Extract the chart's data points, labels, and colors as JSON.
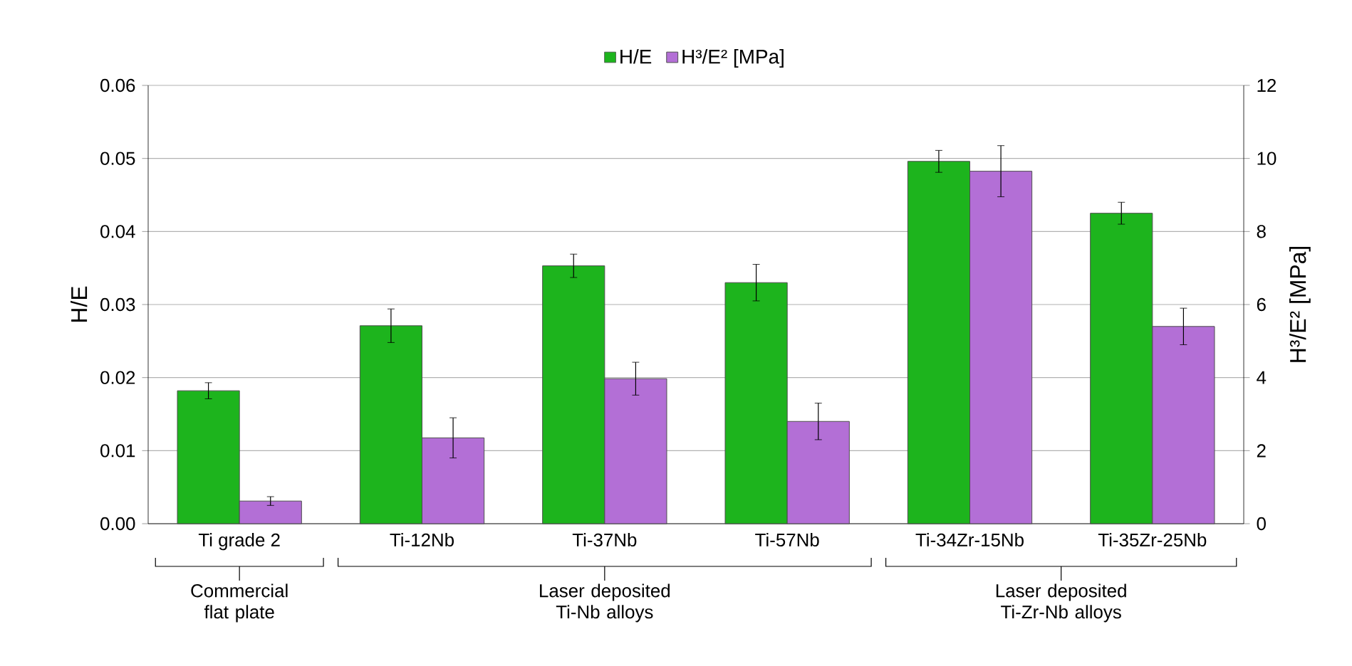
{
  "chart_data": {
    "type": "bar",
    "categories": [
      "Ti grade 2",
      "Ti-12Nb",
      "Ti-37Nb",
      "Ti-57Nb",
      "Ti-34Zr-15Nb",
      "Ti-35Zr-25Nb"
    ],
    "series": [
      {
        "name": "H/E",
        "color": "#1db41d",
        "values": [
          0.0182,
          0.0271,
          0.0353,
          0.033,
          0.0496,
          0.0425
        ],
        "errors": [
          0.0011,
          0.0023,
          0.0016,
          0.0025,
          0.0015,
          0.0015
        ]
      },
      {
        "name": "H³/E² [MPa]",
        "color": "#b36fd6",
        "axis": "y2",
        "values": [
          0.62,
          2.35,
          3.97,
          2.8,
          9.65,
          5.4
        ],
        "errors": [
          0.12,
          0.55,
          0.45,
          0.5,
          0.7,
          0.5
        ]
      }
    ],
    "ylabel": "H/E",
    "y2label": "H³/E² [MPa]",
    "ylim": [
      0,
      0.06
    ],
    "yticks": [
      {
        "value": 0,
        "label": "0.00"
      },
      0.01,
      0.02,
      0.03,
      0.04,
      0.05,
      0.06
    ],
    "y2lim": [
      0,
      12
    ],
    "y2ticks": [
      0,
      2,
      4,
      6,
      8,
      10,
      12
    ],
    "grid": "y",
    "legend": "top",
    "annotations": [
      "Commercial flat plate",
      "Laser deposited Ti-Nb alloys",
      "Laser deposited Ti-Zr-Nb alloys"
    ]
  }
}
